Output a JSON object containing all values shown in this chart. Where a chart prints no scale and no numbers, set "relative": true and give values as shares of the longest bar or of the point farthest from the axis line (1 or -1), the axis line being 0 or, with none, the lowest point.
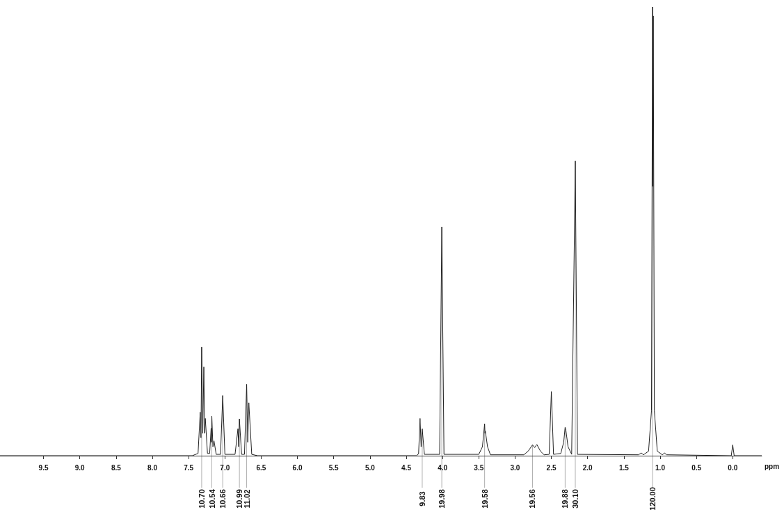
{
  "chart_data": {
    "type": "line",
    "relative": true,
    "xlabel": "ppm",
    "xlim": [
      10.1,
      -0.4
    ],
    "xticks": [
      {
        "value": 9.5,
        "label": "9.5"
      },
      {
        "value": 9,
        "label": "9.0"
      },
      {
        "value": 8.5,
        "label": "8.5"
      },
      {
        "value": 8,
        "label": "8.0"
      },
      {
        "value": 7.5,
        "label": "7.5"
      },
      {
        "value": 7,
        "label": "7.0"
      },
      {
        "value": 6.5,
        "label": "6.5"
      },
      {
        "value": 6,
        "label": "6.0"
      },
      {
        "value": 5.5,
        "label": "5.5"
      },
      {
        "value": 5,
        "label": "5.0"
      },
      {
        "value": 4.5,
        "label": "4.5"
      },
      {
        "value": 4,
        "label": "4.0"
      },
      {
        "value": 3.5,
        "label": "3.5"
      },
      {
        "value": 3,
        "label": "3.0"
      },
      {
        "value": 2.5,
        "label": "2.5"
      },
      {
        "value": 2,
        "label": "2.0"
      },
      {
        "value": 1.5,
        "label": "1.5"
      },
      {
        "value": 1,
        "label": "1.0"
      },
      {
        "value": 0.5,
        "label": "0.5"
      },
      {
        "value": 0,
        "label": "0.0"
      }
    ],
    "grid": false,
    "marker": "none",
    "line_style": "solid",
    "series": [
      {
        "color": "#222222",
        "x": [
          10.1,
          7.45,
          7.37,
          7.34,
          7.33,
          7.32,
          7.305,
          7.29,
          7.28,
          7.27,
          7.24,
          7.21,
          7.19,
          7.185,
          7.18,
          7.165,
          7.15,
          7.12,
          7.06,
          7.03,
          7.0,
          6.86,
          6.82,
          6.81,
          6.8,
          6.77,
          6.73,
          6.7,
          6.685,
          6.67,
          6.63,
          6.55,
          4.36,
          4.33,
          4.31,
          4.295,
          4.28,
          4.25,
          4.04,
          4.01,
          3.98,
          3.5,
          3.45,
          3.42,
          3.415,
          3.41,
          3.38,
          3.34,
          2.88,
          2.82,
          2.76,
          2.73,
          2.7,
          2.65,
          2.6,
          2.53,
          2.5,
          2.47,
          2.37,
          2.33,
          2.31,
          2.3,
          2.27,
          2.22,
          2.17,
          2.14,
          1.3,
          1.26,
          1.23,
          1.16,
          1.12,
          1.105,
          1.1,
          1.095,
          1.08,
          1.04,
          0.97,
          0.94,
          0.91,
          0.02,
          0,
          -0.02,
          -0.4
        ],
        "values": [
          0,
          0,
          0.005,
          0.097,
          0.04,
          0.242,
          0.05,
          0.198,
          0.05,
          0.083,
          0.005,
          0.005,
          0.061,
          0.03,
          0.088,
          0.02,
          0.033,
          0.003,
          0.003,
          0.134,
          0.003,
          0.003,
          0.06,
          0.02,
          0.082,
          0.003,
          0.003,
          0.159,
          0.03,
          0.118,
          0.003,
          0,
          0,
          0.004,
          0.083,
          0.02,
          0.06,
          0.003,
          0.003,
          0.51,
          0.003,
          0.003,
          0.02,
          0.071,
          0.05,
          0.055,
          0.02,
          0.002,
          0.002,
          0.01,
          0.024,
          0.018,
          0.025,
          0.01,
          0.002,
          0.003,
          0.143,
          0.003,
          0.005,
          0.03,
          0.063,
          0.057,
          0.02,
          0.003,
          0.657,
          0.003,
          0.002,
          0.006,
          0.002,
          0.01,
          0.1,
          1,
          0.6,
          0.98,
          0.1,
          0.01,
          0.002,
          0.006,
          0.002,
          0,
          0.024,
          0,
          0
        ]
      }
    ],
    "annotations": [
      {
        "text": "10.70",
        "x": 7.32,
        "y": 0.242
      },
      {
        "text": "10.54",
        "x": 7.18,
        "y": 0.088
      },
      {
        "text": "10.66",
        "x": 7.03,
        "y": 0.134
      },
      {
        "text": "10.99",
        "x": 6.8,
        "y": 0.082
      },
      {
        "text": "11.02",
        "x": 6.7,
        "y": 0.159
      },
      {
        "text": "9.83",
        "x": 4.28,
        "y": 0.06
      },
      {
        "text": "19.98",
        "x": 4.01,
        "y": 0.51
      },
      {
        "text": "19.58",
        "x": 3.42,
        "y": 0.071
      },
      {
        "text": "19.56",
        "x": 2.76,
        "y": 0.024
      },
      {
        "text": "19.88",
        "x": 2.31,
        "y": 0.063
      },
      {
        "text": "30.10",
        "x": 2.17,
        "y": 0.657
      },
      {
        "text": "120.00",
        "x": 1.105,
        "y": 1
      }
    ]
  }
}
